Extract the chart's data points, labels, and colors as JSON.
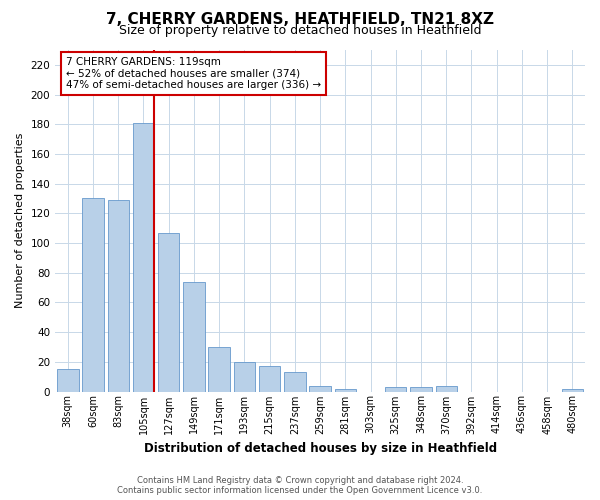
{
  "title": "7, CHERRY GARDENS, HEATHFIELD, TN21 8XZ",
  "subtitle": "Size of property relative to detached houses in Heathfield",
  "xlabel": "Distribution of detached houses by size in Heathfield",
  "ylabel": "Number of detached properties",
  "bar_labels": [
    "38sqm",
    "60sqm",
    "83sqm",
    "105sqm",
    "127sqm",
    "149sqm",
    "171sqm",
    "193sqm",
    "215sqm",
    "237sqm",
    "259sqm",
    "281sqm",
    "303sqm",
    "325sqm",
    "348sqm",
    "370sqm",
    "392sqm",
    "414sqm",
    "436sqm",
    "458sqm",
    "480sqm"
  ],
  "bar_values": [
    15,
    130,
    129,
    181,
    107,
    74,
    30,
    20,
    17,
    13,
    4,
    2,
    0,
    3,
    3,
    4,
    0,
    0,
    0,
    0,
    2
  ],
  "bar_color": "#b8d0e8",
  "bar_edge_color": "#6699cc",
  "vline_index": 3,
  "vline_color": "#cc0000",
  "ylim": [
    0,
    230
  ],
  "yticks": [
    0,
    20,
    40,
    60,
    80,
    100,
    120,
    140,
    160,
    180,
    200,
    220
  ],
  "annotation_text": "7 CHERRY GARDENS: 119sqm\n← 52% of detached houses are smaller (374)\n47% of semi-detached houses are larger (336) →",
  "annotation_box_color": "#ffffff",
  "annotation_box_edge": "#cc0000",
  "footer_line1": "Contains HM Land Registry data © Crown copyright and database right 2024.",
  "footer_line2": "Contains public sector information licensed under the Open Government Licence v3.0.",
  "bg_color": "#ffffff",
  "grid_color": "#c8d8e8",
  "title_fontsize": 11,
  "subtitle_fontsize": 9
}
